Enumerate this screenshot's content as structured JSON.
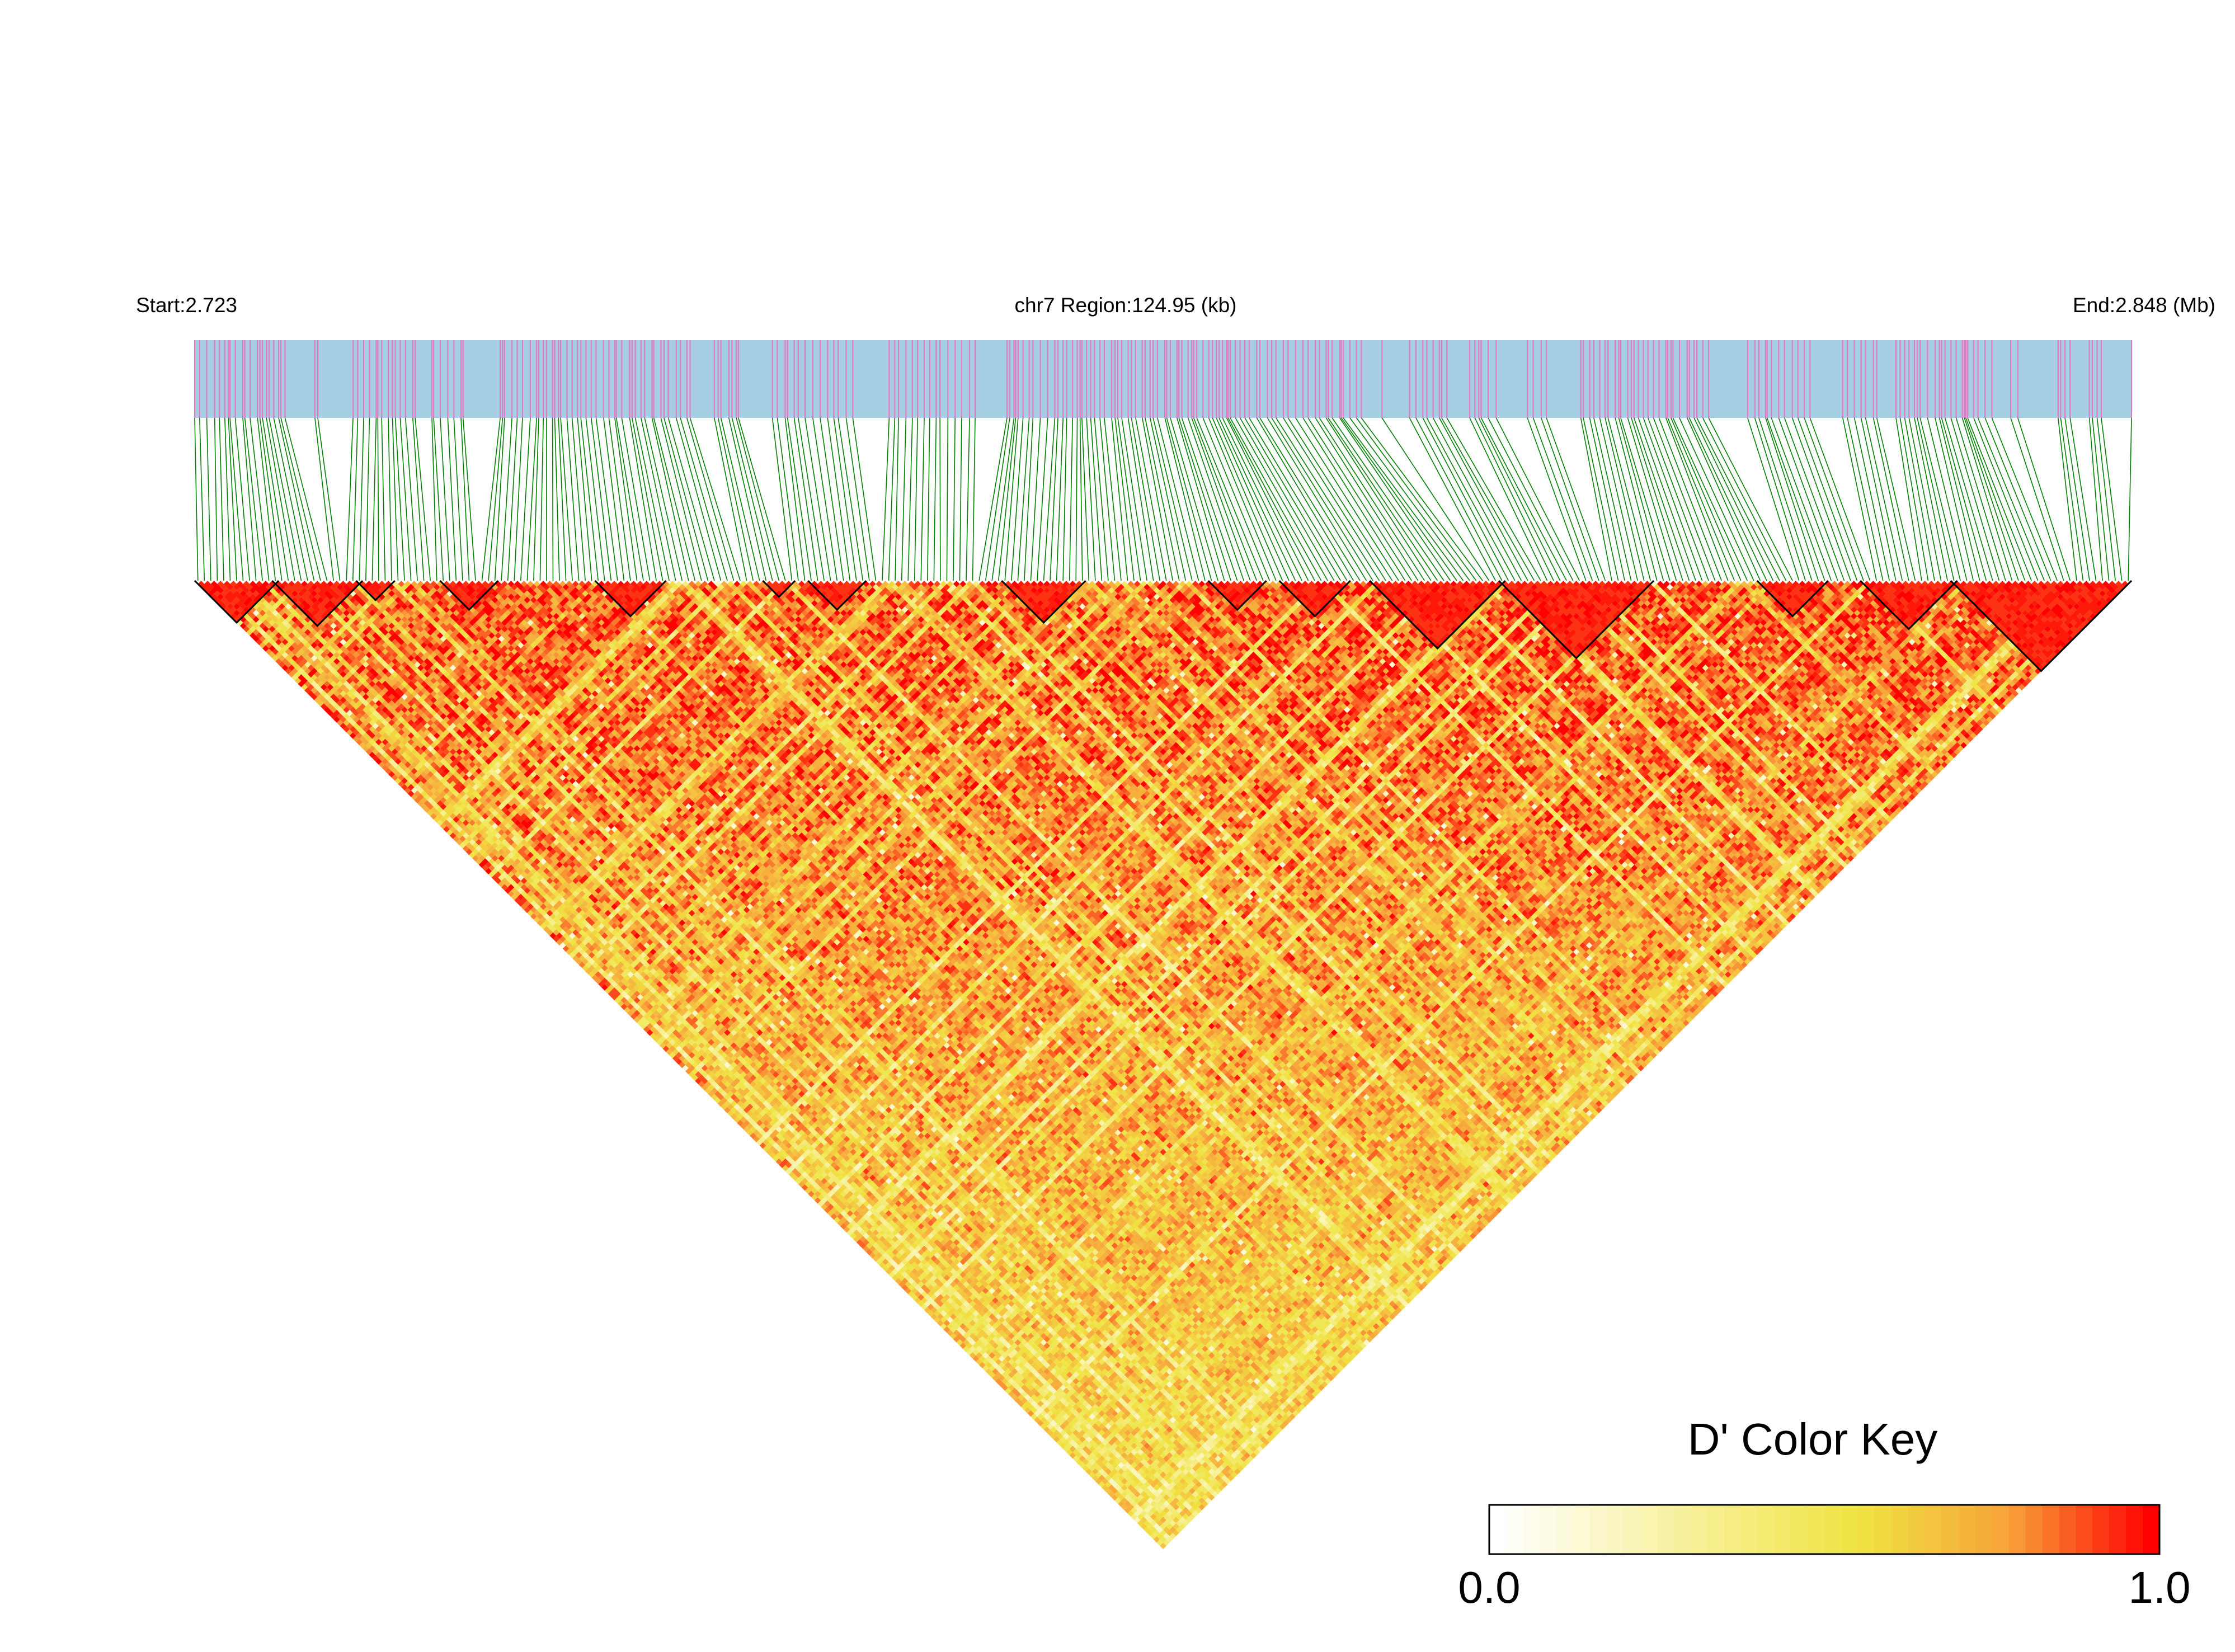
{
  "chart_data": {
    "type": "heatmap",
    "title": "chr7 Region:124.95 (kb)",
    "start_label": "Start:2.723",
    "end_label": "End:2.848 (Mb)",
    "chromosome": "chr7",
    "region_kb": 124.95,
    "start_mb": 2.723,
    "end_mb": 2.848,
    "snp_count": 300,
    "metric": "D'",
    "color_key": {
      "title": "D' Color Key",
      "min_label": "0.0",
      "max_label": "1.0",
      "range": [
        0.0,
        1.0
      ],
      "colors": [
        "#ffffff",
        "#f0e442",
        "#f7a43a",
        "#ff0000"
      ]
    },
    "track_colors": {
      "snp_bar_background": "#a6cee3",
      "snp_tick": "#e07bc0",
      "connector": "#008000",
      "block_outline": "#000000"
    },
    "ld_blocks": [
      {
        "start_index": 0,
        "end_index": 12
      },
      {
        "start_index": 12,
        "end_index": 25
      },
      {
        "start_index": 25,
        "end_index": 30
      },
      {
        "start_index": 38,
        "end_index": 46
      },
      {
        "start_index": 62,
        "end_index": 72
      },
      {
        "start_index": 88,
        "end_index": 92
      },
      {
        "start_index": 95,
        "end_index": 103
      },
      {
        "start_index": 125,
        "end_index": 137
      },
      {
        "start_index": 157,
        "end_index": 165
      },
      {
        "start_index": 168,
        "end_index": 178
      },
      {
        "start_index": 182,
        "end_index": 202
      },
      {
        "start_index": 202,
        "end_index": 225
      },
      {
        "start_index": 242,
        "end_index": 252
      },
      {
        "start_index": 258,
        "end_index": 272
      },
      {
        "start_index": 272,
        "end_index": 299
      }
    ]
  }
}
